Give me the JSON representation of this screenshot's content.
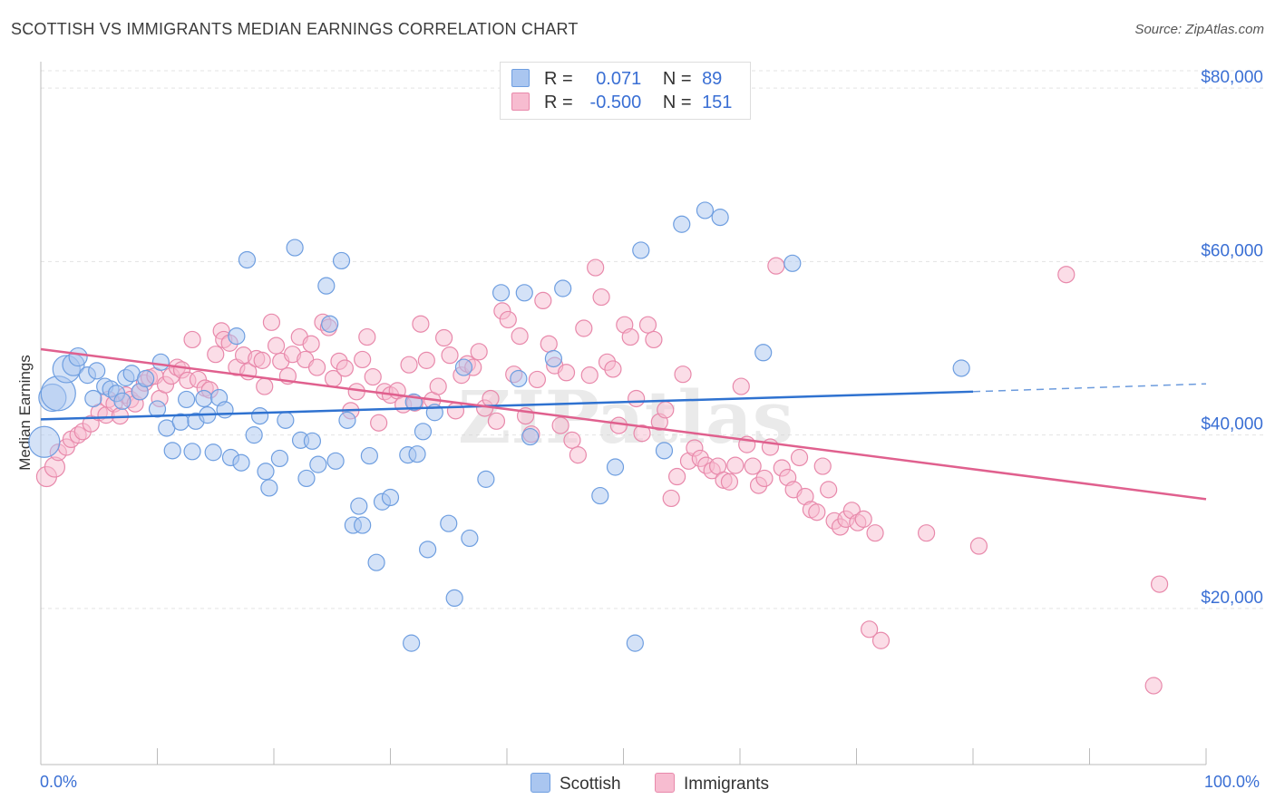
{
  "title": "SCOTTISH VS IMMIGRANTS MEDIAN EARNINGS CORRELATION CHART",
  "source": "Source: ZipAtlas.com",
  "watermark": "ZIPatlas",
  "colors": {
    "scottish_fill": "#aac6f0",
    "scottish_stroke": "#6e9ee0",
    "scottish_line": "#2f72d0",
    "immigrants_fill": "#f7bcd0",
    "immigrants_stroke": "#e889ab",
    "immigrants_line": "#e0608e",
    "axis_label": "#3a6fd4",
    "grid": "#e3e3e3"
  },
  "legend": {
    "rows": [
      {
        "series": "Scottish",
        "r_label": "R =",
        "r_value": "0.071",
        "n_label": "N =",
        "n_value": "89"
      },
      {
        "series": "Immigrants",
        "r_label": "R =",
        "r_value": "-0.500",
        "n_label": "N =",
        "n_value": "151"
      }
    ]
  },
  "bottom_legend": {
    "scottish": "Scottish",
    "immigrants": "Immigrants"
  },
  "chart_data": {
    "type": "scatter",
    "title": "SCOTTISH VS IMMIGRANTS MEDIAN EARNINGS CORRELATION CHART",
    "xlabel": "",
    "ylabel": "Median Earnings",
    "x_unit": "percent",
    "xlim": [
      0,
      100
    ],
    "ylim": [
      2000,
      82000
    ],
    "x_tick_labels": [
      "0.0%",
      "100.0%"
    ],
    "y_ticks": [
      {
        "value": 20000,
        "label": "$20,000"
      },
      {
        "value": 40000,
        "label": "$40,000"
      },
      {
        "value": 60000,
        "label": "$60,000"
      },
      {
        "value": 80000,
        "label": "$80,000"
      }
    ],
    "grid": true,
    "series": [
      {
        "name": "Scottish",
        "r": 0.071,
        "n": 89,
        "trend": {
          "x0": 0,
          "y0": 41800,
          "x1": 80,
          "y1": 45000,
          "dashed_to_x": 100,
          "dashed_to_y": 45900
        },
        "points": [
          [
            0.3,
            39200,
            16
          ],
          [
            1,
            44300,
            14
          ],
          [
            1.5,
            44800,
            18
          ],
          [
            2.2,
            47600,
            14
          ],
          [
            2.8,
            48100,
            11
          ],
          [
            3.2,
            49000,
            9
          ],
          [
            4,
            46900,
            8
          ],
          [
            4.5,
            44200,
            8
          ],
          [
            4.8,
            47400,
            8
          ],
          [
            5.5,
            45600,
            8
          ],
          [
            6,
            45300,
            8
          ],
          [
            6.5,
            44800,
            8
          ],
          [
            7,
            43900,
            8
          ],
          [
            7.3,
            46600,
            8
          ],
          [
            7.8,
            47100,
            8
          ],
          [
            8.5,
            45000,
            8
          ],
          [
            9,
            46500,
            8
          ],
          [
            10,
            43000,
            8
          ],
          [
            10.3,
            48400,
            8
          ],
          [
            10.8,
            40800,
            8
          ],
          [
            11.3,
            38200,
            8
          ],
          [
            12,
            41500,
            8
          ],
          [
            12.5,
            44100,
            8
          ],
          [
            13,
            38100,
            8
          ],
          [
            13.3,
            41600,
            8
          ],
          [
            14,
            44200,
            8
          ],
          [
            14.3,
            42300,
            8
          ],
          [
            14.8,
            38000,
            8
          ],
          [
            15.3,
            44300,
            8
          ],
          [
            15.8,
            42900,
            8
          ],
          [
            16.3,
            37400,
            8
          ],
          [
            16.8,
            51400,
            8
          ],
          [
            17.2,
            36800,
            8
          ],
          [
            17.7,
            60200,
            8
          ],
          [
            18.3,
            40000,
            8
          ],
          [
            18.8,
            42200,
            8
          ],
          [
            19.3,
            35800,
            8
          ],
          [
            19.6,
            33900,
            8
          ],
          [
            20.5,
            37300,
            8
          ],
          [
            21,
            41700,
            8
          ],
          [
            21.8,
            61600,
            8
          ],
          [
            22.3,
            39400,
            8
          ],
          [
            22.8,
            35000,
            8
          ],
          [
            23.3,
            39300,
            8
          ],
          [
            23.8,
            36600,
            8
          ],
          [
            24.5,
            57200,
            8
          ],
          [
            24.8,
            52800,
            8
          ],
          [
            25.3,
            37000,
            8
          ],
          [
            25.8,
            60100,
            8
          ],
          [
            26.3,
            41700,
            8
          ],
          [
            26.8,
            29600,
            8
          ],
          [
            27.3,
            31800,
            8
          ],
          [
            27.6,
            29600,
            8
          ],
          [
            28.2,
            37600,
            8
          ],
          [
            28.8,
            25300,
            8
          ],
          [
            29.3,
            32300,
            8
          ],
          [
            30,
            32800,
            8
          ],
          [
            31.5,
            37700,
            8
          ],
          [
            31.8,
            16000,
            8
          ],
          [
            32,
            43800,
            8
          ],
          [
            32.3,
            37800,
            8
          ],
          [
            32.8,
            40400,
            8
          ],
          [
            33.2,
            26800,
            8
          ],
          [
            33.8,
            42600,
            8
          ],
          [
            35,
            29800,
            8
          ],
          [
            35.5,
            21200,
            8
          ],
          [
            36.3,
            47800,
            8
          ],
          [
            36.8,
            28100,
            8
          ],
          [
            38.2,
            34900,
            8
          ],
          [
            39.5,
            56400,
            8
          ],
          [
            41,
            46500,
            8
          ],
          [
            41.5,
            56400,
            8
          ],
          [
            42,
            39800,
            8
          ],
          [
            44,
            48800,
            8
          ],
          [
            44.8,
            56900,
            8
          ],
          [
            48,
            33000,
            8
          ],
          [
            49.3,
            36300,
            8
          ],
          [
            51.5,
            61300,
            8
          ],
          [
            51,
            16000,
            8
          ],
          [
            53.5,
            38200,
            8
          ],
          [
            55,
            64300,
            8
          ],
          [
            57,
            65900,
            8
          ],
          [
            58.3,
            65100,
            8
          ],
          [
            62,
            49500,
            8
          ],
          [
            64.5,
            59800,
            8
          ],
          [
            79,
            47700,
            8
          ]
        ]
      },
      {
        "name": "Immigrants",
        "r": -0.5,
        "n": 151,
        "trend": {
          "x0": 0,
          "y0": 49900,
          "x1": 100,
          "y1": 32600
        },
        "points": [
          [
            0.5,
            35200,
            10
          ],
          [
            1.2,
            36300,
            10
          ],
          [
            1.5,
            38000,
            8
          ],
          [
            2.2,
            38600,
            8
          ],
          [
            2.6,
            39500,
            8
          ],
          [
            3.2,
            40000,
            8
          ],
          [
            3.6,
            40400,
            8
          ],
          [
            4.3,
            41300,
            8
          ],
          [
            5,
            42600,
            8
          ],
          [
            5.6,
            42300,
            8
          ],
          [
            5.8,
            44100,
            8
          ],
          [
            6.3,
            43600,
            8
          ],
          [
            6.8,
            42200,
            8
          ],
          [
            7.3,
            44600,
            8
          ],
          [
            7.7,
            44100,
            8
          ],
          [
            8.1,
            43600,
            8
          ],
          [
            8.5,
            45000,
            8
          ],
          [
            8.9,
            46000,
            8
          ],
          [
            9.3,
            46600,
            8
          ],
          [
            9.8,
            46800,
            8
          ],
          [
            10.2,
            44200,
            8
          ],
          [
            10.7,
            45800,
            8
          ],
          [
            11.2,
            46800,
            8
          ],
          [
            11.7,
            47800,
            8
          ],
          [
            12.1,
            47500,
            8
          ],
          [
            12.6,
            46300,
            8
          ],
          [
            13,
            51000,
            8
          ],
          [
            13.5,
            46400,
            8
          ],
          [
            14.1,
            45400,
            8
          ],
          [
            14.5,
            45200,
            8
          ],
          [
            15,
            49300,
            8
          ],
          [
            15.5,
            52000,
            8
          ],
          [
            15.7,
            51000,
            8
          ],
          [
            16.2,
            50600,
            8
          ],
          [
            16.8,
            47800,
            8
          ],
          [
            17.4,
            49200,
            8
          ],
          [
            17.8,
            47300,
            8
          ],
          [
            18.5,
            48800,
            8
          ],
          [
            19,
            48600,
            8
          ],
          [
            19.2,
            45600,
            8
          ],
          [
            19.8,
            53000,
            8
          ],
          [
            20.2,
            50300,
            8
          ],
          [
            20.6,
            48500,
            8
          ],
          [
            21.2,
            46800,
            8
          ],
          [
            21.6,
            49300,
            8
          ],
          [
            22.2,
            51300,
            8
          ],
          [
            22.7,
            48700,
            8
          ],
          [
            23.2,
            50500,
            8
          ],
          [
            23.7,
            47800,
            8
          ],
          [
            24.2,
            53000,
            8
          ],
          [
            24.7,
            52400,
            8
          ],
          [
            25.1,
            46500,
            8
          ],
          [
            25.6,
            48500,
            8
          ],
          [
            26.1,
            47700,
            8
          ],
          [
            26.6,
            42800,
            8
          ],
          [
            27.1,
            45000,
            8
          ],
          [
            27.6,
            48700,
            8
          ],
          [
            28,
            51300,
            8
          ],
          [
            28.5,
            46700,
            8
          ],
          [
            29,
            41400,
            8
          ],
          [
            29.5,
            45000,
            8
          ],
          [
            30,
            44600,
            8
          ],
          [
            30.6,
            45100,
            8
          ],
          [
            31.1,
            43500,
            8
          ],
          [
            31.6,
            48100,
            8
          ],
          [
            32.1,
            43700,
            8
          ],
          [
            32.6,
            52800,
            8
          ],
          [
            33.1,
            48600,
            8
          ],
          [
            33.6,
            44000,
            8
          ],
          [
            34.1,
            45600,
            8
          ],
          [
            34.6,
            51200,
            8
          ],
          [
            35.1,
            49200,
            8
          ],
          [
            35.6,
            42800,
            8
          ],
          [
            36.1,
            46900,
            8
          ],
          [
            36.6,
            48200,
            8
          ],
          [
            37.1,
            47800,
            8
          ],
          [
            37.6,
            49600,
            8
          ],
          [
            38.1,
            43100,
            8
          ],
          [
            38.6,
            44200,
            8
          ],
          [
            39.1,
            41600,
            8
          ],
          [
            39.6,
            54300,
            8
          ],
          [
            40.1,
            53300,
            8
          ],
          [
            40.6,
            47000,
            8
          ],
          [
            41.1,
            51400,
            8
          ],
          [
            41.6,
            42200,
            8
          ],
          [
            42.1,
            40100,
            8
          ],
          [
            42.6,
            46400,
            8
          ],
          [
            43.1,
            55500,
            8
          ],
          [
            43.6,
            50500,
            8
          ],
          [
            44.1,
            48000,
            8
          ],
          [
            44.6,
            41100,
            8
          ],
          [
            45.1,
            47200,
            8
          ],
          [
            45.6,
            39400,
            8
          ],
          [
            46.1,
            37700,
            8
          ],
          [
            46.6,
            52300,
            8
          ],
          [
            47.1,
            46900,
            8
          ],
          [
            47.6,
            59300,
            8
          ],
          [
            48.1,
            55900,
            8
          ],
          [
            48.6,
            48400,
            8
          ],
          [
            49.1,
            47600,
            8
          ],
          [
            49.6,
            41100,
            8
          ],
          [
            50.1,
            52700,
            8
          ],
          [
            50.6,
            51300,
            8
          ],
          [
            51.1,
            44200,
            8
          ],
          [
            51.6,
            40200,
            8
          ],
          [
            52.1,
            52700,
            8
          ],
          [
            52.6,
            51000,
            8
          ],
          [
            53.1,
            41500,
            8
          ],
          [
            53.6,
            42900,
            8
          ],
          [
            54.1,
            32700,
            8
          ],
          [
            54.6,
            35200,
            8
          ],
          [
            55.1,
            47000,
            8
          ],
          [
            55.6,
            37000,
            8
          ],
          [
            56.1,
            38500,
            8
          ],
          [
            56.6,
            37300,
            8
          ],
          [
            57.1,
            36500,
            8
          ],
          [
            57.6,
            35900,
            8
          ],
          [
            58.1,
            36400,
            8
          ],
          [
            58.6,
            34800,
            8
          ],
          [
            59.1,
            34600,
            8
          ],
          [
            59.6,
            36500,
            8
          ],
          [
            60.1,
            45600,
            8
          ],
          [
            60.6,
            38900,
            8
          ],
          [
            61.1,
            36400,
            8
          ],
          [
            61.6,
            34200,
            8
          ],
          [
            62.1,
            35000,
            8
          ],
          [
            62.6,
            38600,
            8
          ],
          [
            63.1,
            59500,
            8
          ],
          [
            63.6,
            36200,
            8
          ],
          [
            64.1,
            35100,
            8
          ],
          [
            64.6,
            33700,
            8
          ],
          [
            65.1,
            37400,
            8
          ],
          [
            65.6,
            32900,
            8
          ],
          [
            66.1,
            31400,
            8
          ],
          [
            66.6,
            31100,
            8
          ],
          [
            67.1,
            36400,
            8
          ],
          [
            67.6,
            33700,
            8
          ],
          [
            68.1,
            30100,
            8
          ],
          [
            68.6,
            29400,
            8
          ],
          [
            69.1,
            30300,
            8
          ],
          [
            69.6,
            31300,
            8
          ],
          [
            70.1,
            29900,
            8
          ],
          [
            70.6,
            30300,
            8
          ],
          [
            71.1,
            17600,
            8
          ],
          [
            71.6,
            28700,
            8
          ],
          [
            72.1,
            16300,
            8
          ],
          [
            76,
            28700,
            8
          ],
          [
            80.5,
            27200,
            8
          ],
          [
            88,
            58500,
            8
          ],
          [
            95.5,
            11100,
            8
          ],
          [
            96,
            22800,
            8
          ]
        ]
      }
    ]
  }
}
